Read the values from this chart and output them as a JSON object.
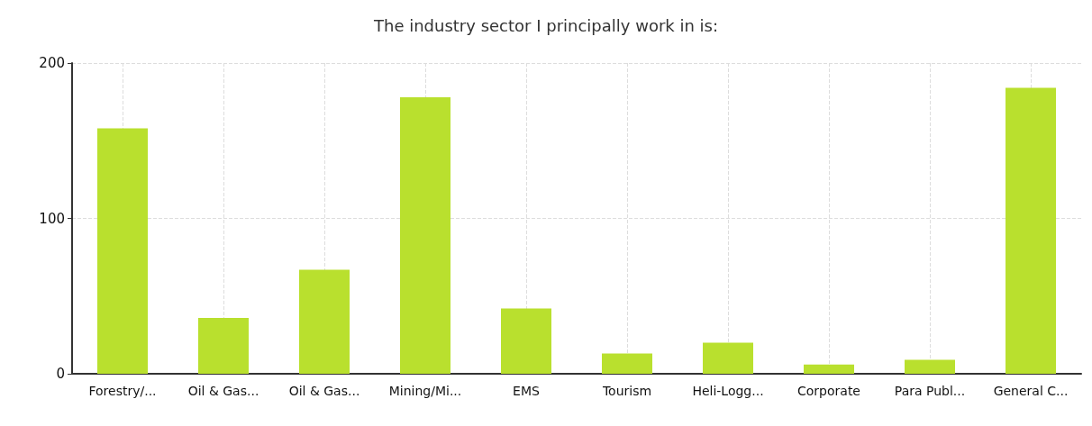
{
  "chart_data": {
    "type": "bar",
    "title": "The industry sector I principally work in is:",
    "categories": [
      "Forestry/...",
      "Oil & Gas...",
      "Oil & Gas...",
      "Mining/Mi...",
      "EMS",
      "Tourism",
      "Heli-Logg...",
      "Corporate",
      "Para Publ...",
      "General C..."
    ],
    "values": [
      158,
      36,
      67,
      178,
      42,
      13,
      20,
      6,
      9,
      184
    ],
    "color": "#b9e02e",
    "ylim": [
      0,
      200
    ],
    "yticks": [
      0,
      100,
      200
    ],
    "grid": true
  }
}
